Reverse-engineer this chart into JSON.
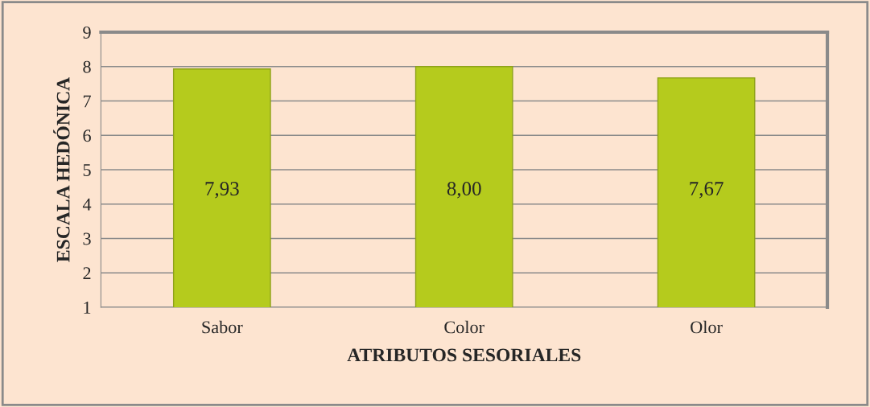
{
  "chart_data": {
    "type": "bar",
    "xlabel": "ATRIBUTOS SESORIALES",
    "ylabel": "ESCALA HEDÓNICA",
    "categories": [
      "Sabor",
      "Color",
      "Olor"
    ],
    "values": [
      7.93,
      8.0,
      7.67
    ],
    "value_labels": [
      "7,93",
      "8,00",
      "7,67"
    ],
    "color": "#b5cb1d",
    "ylim": [
      1,
      9
    ],
    "yticks": [
      1,
      2,
      3,
      4,
      5,
      6,
      7,
      8,
      9
    ],
    "grid": "y",
    "legend": false
  }
}
